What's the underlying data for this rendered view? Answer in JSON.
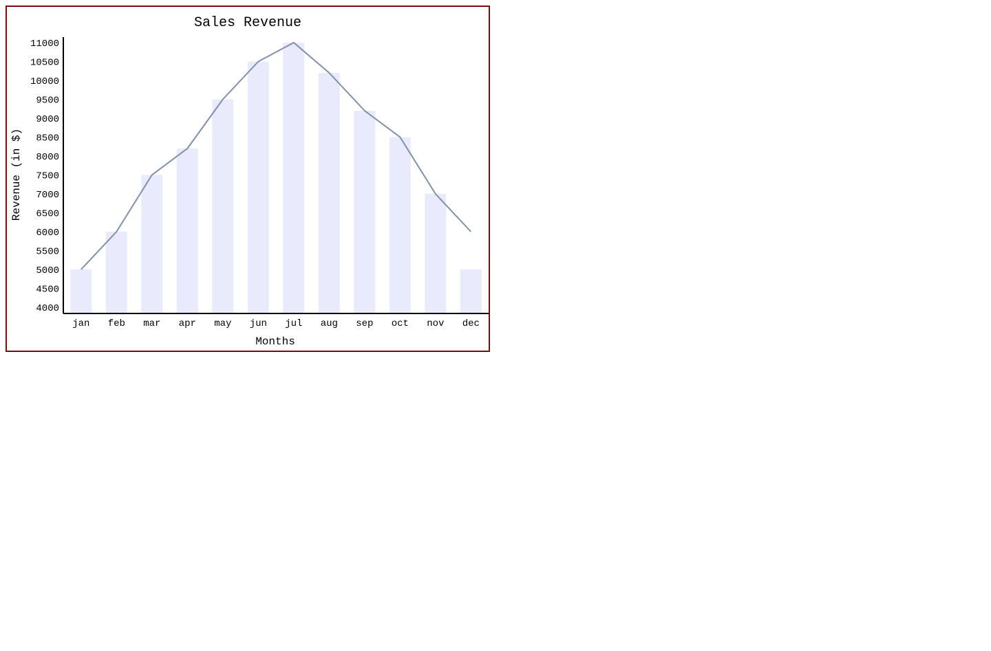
{
  "chart_data": {
    "type": "bar",
    "title": "Sales Revenue",
    "xlabel": "Months",
    "ylabel": "Revenue (in $)",
    "categories": [
      "jan",
      "feb",
      "mar",
      "apr",
      "may",
      "jun",
      "jul",
      "aug",
      "sep",
      "oct",
      "nov",
      "dec"
    ],
    "values": [
      5000,
      6000,
      7500,
      8200,
      9500,
      10500,
      11000,
      10200,
      9200,
      8500,
      7000,
      5000
    ],
    "line_values": [
      5000,
      6000,
      7500,
      8200,
      9500,
      10500,
      11000,
      10200,
      9200,
      8500,
      7000,
      6000
    ],
    "yticks": [
      "4000",
      "4500",
      "5000",
      "5500",
      "6000",
      "6500",
      "7000",
      "7500",
      "8000",
      "8500",
      "9000",
      "9500",
      "10000",
      "10500",
      "11000"
    ],
    "ylim": [
      4000,
      11000
    ],
    "grid": false,
    "colors": {
      "bar": "#e9eafb",
      "line": "#8090a8",
      "axis": "#000000",
      "border": "#7a0a0a"
    }
  }
}
